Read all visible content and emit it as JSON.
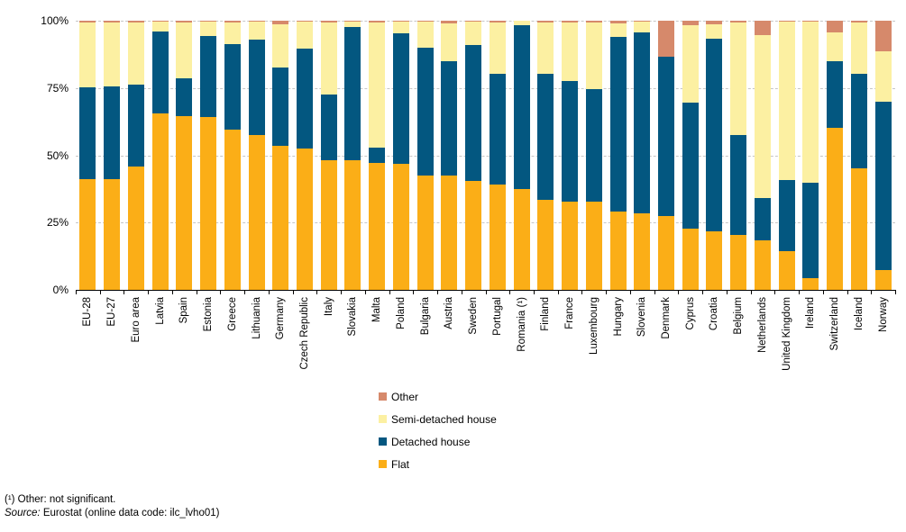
{
  "chart_data": {
    "type": "bar",
    "stacking": "percent",
    "title": "",
    "xlabel": "",
    "ylabel": "",
    "categories": [
      "EU-28",
      "EU-27",
      "Euro area",
      "Latvia",
      "Spain",
      "Estonia",
      "Greece",
      "Lithuania",
      "Germany",
      "Czech Republic",
      "Italy",
      "Slovakia",
      "Malta",
      "Poland",
      "Bulgaria",
      "Austria",
      "Sweden",
      "Portugal",
      "Romania (¹)",
      "Finland",
      "France",
      "Luxembourg",
      "Hungary",
      "Slovenia",
      "Denmark",
      "Cyprus",
      "Croatia",
      "Belgium",
      "Netherlands",
      "United Kingdom",
      "Ireland",
      "Switzerland",
      "Iceland",
      "Norway"
    ],
    "series": [
      {
        "name": "Flat",
        "color": "#FBAE17",
        "values": [
          41.0,
          41.0,
          45.7,
          65.4,
          64.7,
          64.3,
          59.6,
          57.4,
          53.5,
          52.4,
          48.2,
          48.2,
          47.3,
          46.7,
          42.4,
          42.4,
          40.4,
          39.2,
          37.6,
          33.4,
          32.8,
          32.8,
          29.0,
          28.4,
          27.5,
          22.6,
          21.6,
          20.4,
          18.4,
          14.3,
          4.2,
          60.3,
          45.3,
          7.3
        ]
      },
      {
        "name": "Detached house",
        "color": "#035780",
        "values": [
          34.4,
          34.5,
          30.4,
          30.7,
          13.9,
          30.1,
          31.8,
          35.6,
          29.0,
          37.2,
          24.3,
          49.6,
          5.5,
          48.6,
          47.6,
          42.6,
          50.7,
          41.0,
          60.7,
          46.9,
          44.7,
          41.8,
          64.9,
          67.1,
          59.1,
          47.0,
          71.7,
          37.1,
          15.7,
          26.5,
          35.5,
          24.7,
          34.9,
          62.5
        ]
      },
      {
        "name": "Semi-detached house",
        "color": "#FCF0A2",
        "values": [
          24.1,
          24.0,
          23.1,
          3.7,
          20.9,
          5.4,
          8.1,
          6.7,
          16.3,
          10.1,
          27.0,
          2.0,
          46.4,
          4.4,
          9.6,
          14.0,
          8.7,
          19.3,
          1.7,
          19.2,
          21.7,
          24.9,
          5.1,
          4.2,
          0.0,
          28.9,
          5.5,
          42.0,
          60.7,
          59.0,
          60.0,
          10.5,
          19.1,
          19.0
        ]
      },
      {
        "name": "Other",
        "color": "#D6896B",
        "values": [
          0.5,
          0.5,
          0.8,
          0.2,
          0.5,
          0.2,
          0.5,
          0.3,
          1.2,
          0.3,
          0.5,
          0.2,
          0.8,
          0.3,
          0.4,
          1.0,
          0.2,
          0.5,
          0.0,
          0.5,
          0.8,
          0.5,
          1.0,
          0.3,
          13.4,
          1.5,
          1.2,
          0.5,
          5.2,
          0.2,
          0.3,
          4.5,
          0.7,
          11.2
        ]
      }
    ],
    "y_axis": {
      "ticks": [
        {
          "pct": 0,
          "label": "0%"
        },
        {
          "pct": 25,
          "label": "25%"
        },
        {
          "pct": 50,
          "label": "50%"
        },
        {
          "pct": 75,
          "label": "75%"
        },
        {
          "pct": 100,
          "label": "100%"
        }
      ],
      "range": [
        0,
        100
      ],
      "gridlines": "dashed"
    },
    "legend": {
      "position": "below-center",
      "order": [
        "Other",
        "Semi-detached house",
        "Detached house",
        "Flat"
      ]
    }
  },
  "footnotes": {
    "note1": "(¹) Other: not significant.",
    "source_label": "Source:",
    "source_text": "Eurostat (online data code: ilc_lvho01)"
  }
}
